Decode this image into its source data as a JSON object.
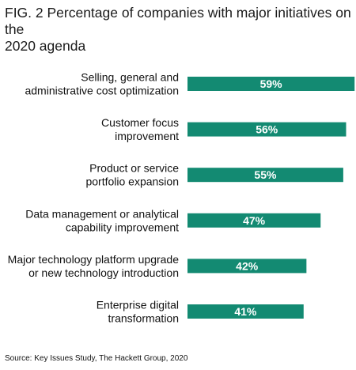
{
  "chart_data": {
    "type": "bar",
    "orientation": "horizontal",
    "title": "FIG. 2 Percentage of companies with major initiatives on the\n2020 agenda",
    "categories": [
      [
        "Selling, general and",
        "administrative cost optimization"
      ],
      [
        "Customer focus",
        "improvement"
      ],
      [
        "Product or service",
        "portfolio expansion"
      ],
      [
        "Data management or analytical",
        "capability improvement"
      ],
      [
        "Major technology platform upgrade",
        "or new technology introduction"
      ],
      [
        "Enterprise digital",
        "transformation"
      ]
    ],
    "values": [
      59,
      56,
      55,
      47,
      42,
      41
    ],
    "value_labels": [
      "59%",
      "56%",
      "55%",
      "47%",
      "42%",
      "41%"
    ],
    "unit": "%",
    "bar_color": "#138a72",
    "grid": false,
    "legend": "none",
    "source": "Source: Key Issues Study, The Hackett Group, 2020"
  }
}
